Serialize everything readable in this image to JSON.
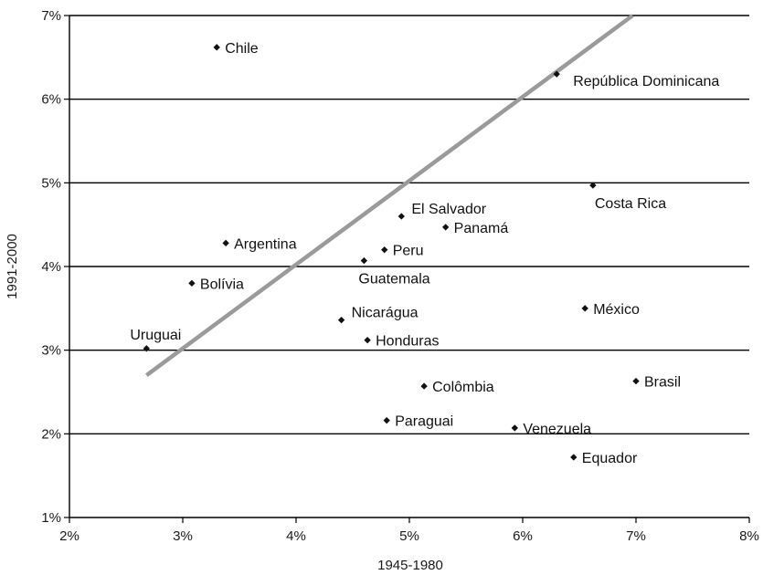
{
  "chart_data": {
    "type": "scatter",
    "xlabel": "1945-1980",
    "ylabel": "1991-2000",
    "xlim": [
      2,
      8
    ],
    "ylim": [
      1,
      7
    ],
    "xticks": [
      2,
      3,
      4,
      5,
      6,
      7,
      8
    ],
    "yticks": [
      1,
      2,
      3,
      4,
      5,
      6,
      7
    ],
    "tick_suffix": "%",
    "grid": "horizontal",
    "legend": "none",
    "points": [
      {
        "label": "Chile",
        "x": 3.3,
        "y": 6.62,
        "anchor": "right"
      },
      {
        "label": "República Dominicana",
        "x": 6.3,
        "y": 6.3,
        "anchor": "right-below"
      },
      {
        "label": "Costa Rica",
        "x": 6.62,
        "y": 4.97,
        "anchor": "below"
      },
      {
        "label": "El Salvador",
        "x": 4.93,
        "y": 4.6,
        "anchor": "right-above"
      },
      {
        "label": "Panamá",
        "x": 5.32,
        "y": 4.47,
        "anchor": "right"
      },
      {
        "label": "Argentina",
        "x": 3.38,
        "y": 4.28,
        "anchor": "right"
      },
      {
        "label": "Peru",
        "x": 4.78,
        "y": 4.2,
        "anchor": "right"
      },
      {
        "label": "Guatemala",
        "x": 4.6,
        "y": 4.07,
        "anchor": "below"
      },
      {
        "label": "Bolívia",
        "x": 3.08,
        "y": 3.8,
        "anchor": "right"
      },
      {
        "label": "México",
        "x": 6.55,
        "y": 3.5,
        "anchor": "right"
      },
      {
        "label": "Nicarágua",
        "x": 4.4,
        "y": 3.36,
        "anchor": "right-above"
      },
      {
        "label": "Honduras",
        "x": 4.63,
        "y": 3.12,
        "anchor": "right"
      },
      {
        "label": "Uruguai",
        "x": 2.68,
        "y": 3.02,
        "anchor": "above"
      },
      {
        "label": "Brasil",
        "x": 7.0,
        "y": 2.63,
        "anchor": "right"
      },
      {
        "label": "Colômbia",
        "x": 5.13,
        "y": 2.57,
        "anchor": "right"
      },
      {
        "label": "Paraguai",
        "x": 4.8,
        "y": 2.16,
        "anchor": "right"
      },
      {
        "label": "Venezuela",
        "x": 5.93,
        "y": 2.07,
        "anchor": "right"
      },
      {
        "label": "Equador",
        "x": 6.45,
        "y": 1.72,
        "anchor": "right"
      }
    ],
    "trendline": {
      "x": [
        2.68,
        6.97
      ],
      "y": [
        2.7,
        7.0
      ]
    }
  },
  "colors": {
    "gridline": "#000000",
    "axis": "#000000",
    "marker": "#111111",
    "trendline": "#9a9a9a"
  }
}
